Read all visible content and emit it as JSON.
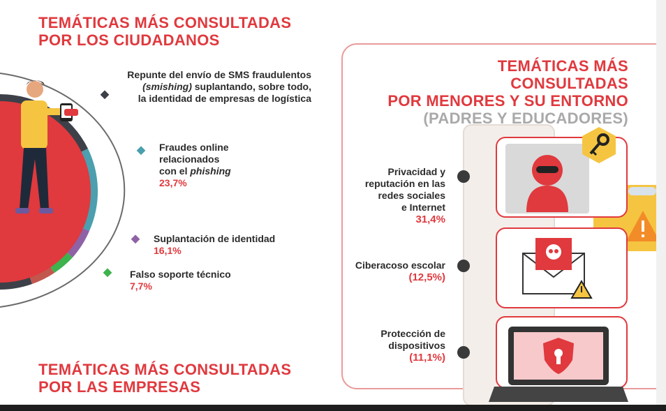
{
  "citizens": {
    "title_line1": "TEMÁTICAS MÁS CONSULTADAS",
    "title_line2": "POR LOS CIUDADANOS",
    "item1": {
      "line1": "Repunte del envío de SMS fraudulentos",
      "line2_italic": "(smishing)",
      "line2_rest": " suplantando, sobre todo,",
      "line3": "la identidad de empresas de logística"
    },
    "item2": {
      "line1": "Fraudes online",
      "line2": "relacionados",
      "line3_prefix": "con el ",
      "line3_italic": "phishing",
      "value": "23,7%"
    },
    "item3": {
      "label": "Suplantación de identidad",
      "value": "16,1%"
    },
    "item4": {
      "label": "Falso soporte técnico",
      "value": "7,7%"
    }
  },
  "companies": {
    "title_line1": "TEMÁTICAS MÁS CONSULTADAS",
    "title_line2": "POR LAS EMPRESAS"
  },
  "minors": {
    "title_line1": "TEMÁTICAS MÁS CONSULTADAS",
    "title_line2": "POR MENORES Y SU ENTORNO",
    "subtitle": "(PADRES Y EDUCADORES)",
    "item1": {
      "l1": "Privacidad y",
      "l2": "reputación en las",
      "l3": "redes sociales",
      "l4": "e Internet",
      "value": "31,4%"
    },
    "item2": {
      "label": "Ciberacoso escolar",
      "value": "(12,5%)"
    },
    "item3": {
      "l1": "Protección de",
      "l2": "dispositivos",
      "value": "(11,1%)"
    }
  },
  "icons": [
    "person-phone-icon",
    "hacker-icon",
    "key-icon",
    "warning-icon",
    "envelope-skull-icon",
    "laptop-shield-icon"
  ],
  "colors": {
    "accent": "#e0393e",
    "pie_red": "#e0393e",
    "pie_dark": "#3d4048",
    "pie_teal": "#4b9fae",
    "pie_purple": "#8e62a5",
    "pie_green": "#3eb24c",
    "pie_brown": "#c2574e"
  }
}
